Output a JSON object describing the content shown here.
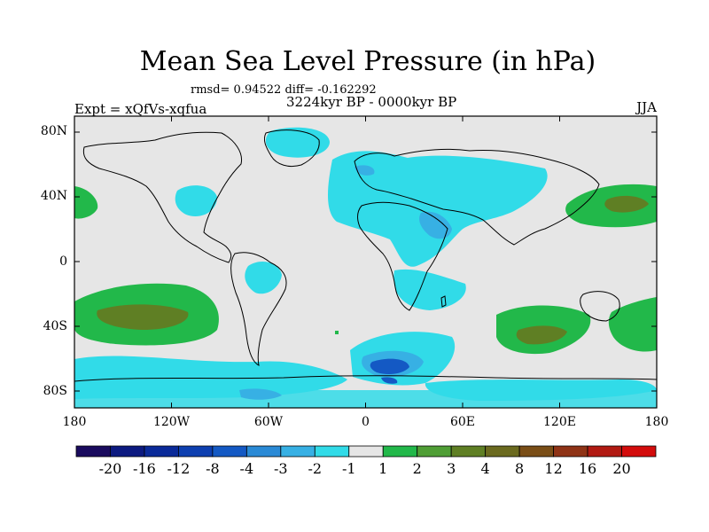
{
  "title": "Mean Sea Level Pressure (in hPa)",
  "subtitle_stats": "rmsd= 0.94522 diff= -0.162292",
  "subtitle_period": "3224kyr BP - 0000kyr BP",
  "experiment_label": "Expt = xQfVs-xqfua",
  "season_label": "JJA",
  "map": {
    "projection": "cylindrical-equidistant",
    "lon_range": [
      -180,
      180
    ],
    "lat_range": [
      -90,
      90
    ],
    "lat_ticks": [
      {
        "value": 80,
        "label": "80N"
      },
      {
        "value": 40,
        "label": "40N"
      },
      {
        "value": 0,
        "label": "0"
      },
      {
        "value": -40,
        "label": "40S"
      },
      {
        "value": -80,
        "label": "80S"
      }
    ],
    "lon_ticks": [
      {
        "value": -180,
        "label": "180"
      },
      {
        "value": -120,
        "label": "120W"
      },
      {
        "value": -60,
        "label": "60W"
      },
      {
        "value": 0,
        "label": "0"
      },
      {
        "value": 60,
        "label": "60E"
      },
      {
        "value": 120,
        "label": "120E"
      },
      {
        "value": 180,
        "label": "180"
      }
    ],
    "background_color": "#e6e6e6"
  },
  "colorbar": {
    "colors": [
      "#1a0b5e",
      "#0c1a80",
      "#0a2a99",
      "#0d3fb0",
      "#1459c4",
      "#2a8ad6",
      "#37b0e4",
      "#31dbe8",
      "#e6e6e6",
      "#22b84a",
      "#4f9e35",
      "#5f7f24",
      "#6b6a1f",
      "#7a4e17",
      "#8f3316",
      "#b11a12",
      "#d30c0c"
    ],
    "labels": [
      "-20",
      "-16",
      "-12",
      "-8",
      "-4",
      "-3",
      "-2",
      "-1",
      "1",
      "2",
      "3",
      "4",
      "8",
      "12",
      "16",
      "20"
    ]
  },
  "chart_data": {
    "type": "heatmap",
    "title": "Mean Sea Level Pressure (in hPa)",
    "variable": "Mean sea level pressure difference",
    "units": "hPa",
    "period": "3224kyr BP - 0000kyr BP",
    "season": "JJA",
    "rmsd": 0.94522,
    "diff": -0.162292,
    "levels": [
      -20,
      -16,
      -12,
      -8,
      -4,
      -3,
      -2,
      -1,
      1,
      2,
      3,
      4,
      8,
      12,
      16,
      20
    ],
    "features": [
      {
        "region": "Southern Pacific subtropics",
        "lon": -135,
        "lat": -35,
        "range": "2 to 4"
      },
      {
        "region": "Southern Indian Ocean",
        "lon": 105,
        "lat": -45,
        "range": "2 to 4"
      },
      {
        "region": "Southwest Pacific",
        "lon": 170,
        "lat": -40,
        "range": "2 to 3"
      },
      {
        "region": "North Pacific (east of Japan)",
        "lon": 160,
        "lat": 38,
        "range": "2 to 4"
      },
      {
        "region": "North Pacific (eastern)",
        "lon": -175,
        "lat": 40,
        "range": "2 to 3"
      },
      {
        "region": "Eurasia / North Africa",
        "lon": 50,
        "lat": 38,
        "range": "-1 to -3"
      },
      {
        "region": "Arabian Peninsula",
        "lon": 40,
        "lat": 28,
        "range": "-2 to -3"
      },
      {
        "region": "Greenland / Arctic",
        "lon": -25,
        "lat": 75,
        "range": "-1 to -2"
      },
      {
        "region": "Weddell Sea / Southern Ocean",
        "lon": 15,
        "lat": -70,
        "range": "-2 to -8"
      },
      {
        "region": "Southern Ocean (Pacific sector)",
        "lon": -120,
        "lat": -70,
        "range": "-1 to -2"
      },
      {
        "region": "Central Africa / Indian Ocean",
        "lon": 45,
        "lat": -20,
        "range": "-1 to -2"
      },
      {
        "region": "South America",
        "lon": -60,
        "lat": -10,
        "range": "-1 to -2"
      }
    ]
  }
}
